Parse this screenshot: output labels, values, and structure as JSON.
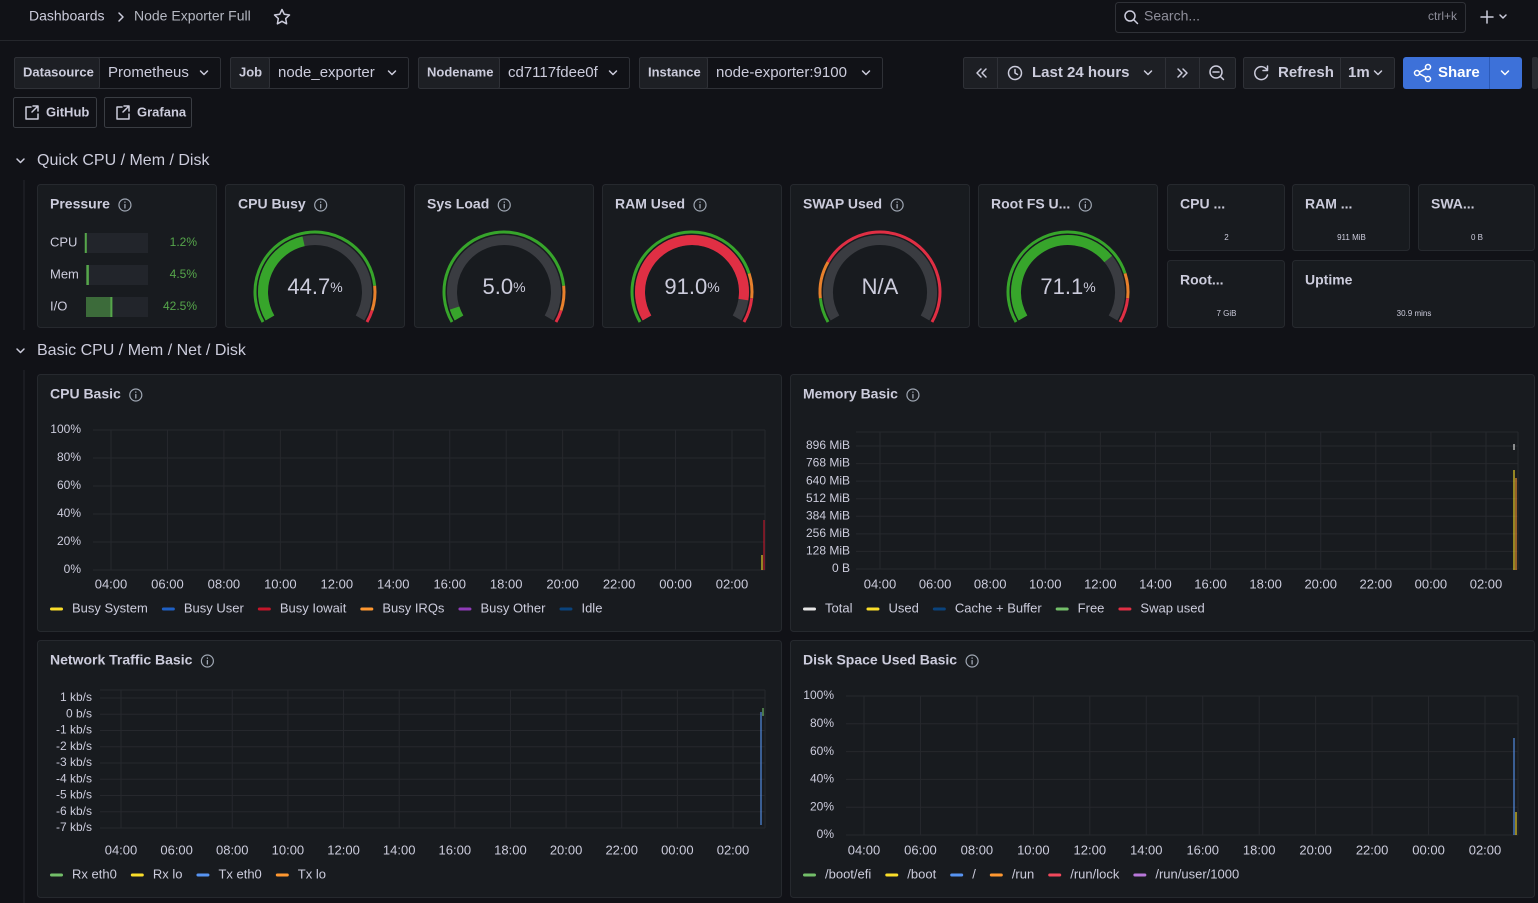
{
  "header": {
    "breadcrumb": "Dashboards",
    "title": "Node Exporter Full",
    "search_placeholder": "Search...",
    "search_shortcut": "ctrl+k"
  },
  "variables": [
    {
      "label": "Datasource",
      "value": "Prometheus"
    },
    {
      "label": "Job",
      "value": "node_exporter"
    },
    {
      "label": "Nodename",
      "value": "cd7117fdee0f"
    },
    {
      "label": "Instance",
      "value": "node-exporter:9100"
    }
  ],
  "time_controls": {
    "range": "Last 24 hours",
    "refresh": "Refresh",
    "interval": "1m",
    "share": "Share"
  },
  "links": [
    "GitHub",
    "Grafana"
  ],
  "rows": [
    "Quick CPU / Mem / Disk",
    "Basic CPU / Mem / Net / Disk"
  ],
  "pressure": {
    "title": "Pressure",
    "items": [
      {
        "label": "CPU",
        "value": 1.2,
        "value_label": "1.2%"
      },
      {
        "label": "Mem",
        "value": 4.5,
        "value_label": "4.5%"
      },
      {
        "label": "I/O",
        "value": 42.5,
        "value_label": "42.5%"
      }
    ]
  },
  "gauges": [
    {
      "title": "CPU Busy",
      "value": 44.7,
      "value_label": "44.7",
      "unit": "%",
      "range": [
        0,
        100
      ],
      "thresholds": [
        {
          "value": 0,
          "color": "#37a52b"
        },
        {
          "value": 85,
          "color": "#e8812c"
        },
        {
          "value": 95,
          "color": "#e02f44"
        }
      ]
    },
    {
      "title": "Sys Load",
      "value": 5,
      "value_label": "5.0",
      "unit": "%",
      "range": [
        0,
        100
      ],
      "thresholds": [
        {
          "value": 0,
          "color": "#37a52b"
        },
        {
          "value": 85,
          "color": "#e8812c"
        },
        {
          "value": 95,
          "color": "#e02f44"
        }
      ]
    },
    {
      "title": "RAM Used",
      "value": 91,
      "value_label": "91.0",
      "unit": "%",
      "range": [
        0,
        100
      ],
      "thresholds": [
        {
          "value": 0,
          "color": "#37a52b"
        },
        {
          "value": 80,
          "color": "#e8812c"
        },
        {
          "value": 90,
          "color": "#e02f44"
        }
      ]
    },
    {
      "title": "SWAP Used",
      "value": null,
      "value_label": "N/A",
      "range": [
        0,
        100
      ],
      "thresholds": [
        {
          "value": 0,
          "color": "#37a52b"
        },
        {
          "value": 10,
          "color": "#e8812c"
        },
        {
          "value": 25,
          "color": "#e02f44"
        }
      ]
    },
    {
      "title": "Root FS U...",
      "value": 71.1,
      "value_label": "71.1",
      "unit": "%",
      "range": [
        0,
        100
      ],
      "thresholds": [
        {
          "value": 0,
          "color": "#37a52b"
        },
        {
          "value": 80,
          "color": "#e8812c"
        },
        {
          "value": 90,
          "color": "#e02f44"
        }
      ]
    }
  ],
  "stats": [
    {
      "title": "CPU ...",
      "value": "2"
    },
    {
      "title": "RAM ...",
      "value": "911 MiB"
    },
    {
      "title": "SWA...",
      "value": "0 B"
    },
    {
      "title": "Root...",
      "value": "7 GiB"
    },
    {
      "title": "Uptime",
      "value": "30.9 mins"
    }
  ],
  "panels": [
    {
      "title": "CPU Basic",
      "yticks": [
        "0%",
        "20%",
        "40%",
        "60%",
        "80%",
        "100%"
      ],
      "xticks": [
        "04:00",
        "06:00",
        "08:00",
        "10:00",
        "12:00",
        "14:00",
        "16:00",
        "18:00",
        "20:00",
        "22:00",
        "00:00",
        "02:00"
      ],
      "legend": [
        {
          "name": "Busy System",
          "color": "#fade2a"
        },
        {
          "name": "Busy User",
          "color": "#1f60c4"
        },
        {
          "name": "Busy Iowait",
          "color": "#c4162a"
        },
        {
          "name": "Busy IRQs",
          "color": "#ff9830"
        },
        {
          "name": "Busy Other",
          "color": "#8f3bb8"
        },
        {
          "name": "Idle",
          "color": "#0a437c"
        }
      ]
    },
    {
      "title": "Memory Basic",
      "yticks": [
        "0 B",
        "128 MiB",
        "256 MiB",
        "384 MiB",
        "512 MiB",
        "640 MiB",
        "768 MiB",
        "896 MiB"
      ],
      "xticks": [
        "04:00",
        "06:00",
        "08:00",
        "10:00",
        "12:00",
        "14:00",
        "16:00",
        "18:00",
        "20:00",
        "22:00",
        "00:00",
        "02:00"
      ],
      "legend": [
        {
          "name": "Total",
          "color": "#e6e6e6"
        },
        {
          "name": "Used",
          "color": "#fade2a"
        },
        {
          "name": "Cache + Buffer",
          "color": "#0a437c"
        },
        {
          "name": "Free",
          "color": "#73bf69"
        },
        {
          "name": "Swap used",
          "color": "#e02f44"
        }
      ]
    },
    {
      "title": "Network Traffic Basic",
      "yticks": [
        "-7 kb/s",
        "-6 kb/s",
        "-5 kb/s",
        "-4 kb/s",
        "-3 kb/s",
        "-2 kb/s",
        "-1 kb/s",
        "0 b/s",
        "1 kb/s"
      ],
      "xticks": [
        "04:00",
        "06:00",
        "08:00",
        "10:00",
        "12:00",
        "14:00",
        "16:00",
        "18:00",
        "20:00",
        "22:00",
        "00:00",
        "02:00"
      ],
      "legend": [
        {
          "name": "Rx eth0",
          "color": "#73bf69"
        },
        {
          "name": "Rx lo",
          "color": "#fade2a"
        },
        {
          "name": "Tx eth0",
          "color": "#5794f2"
        },
        {
          "name": "Tx lo",
          "color": "#ff9830"
        }
      ]
    },
    {
      "title": "Disk Space Used Basic",
      "yticks": [
        "0%",
        "20%",
        "40%",
        "60%",
        "80%",
        "100%"
      ],
      "xticks": [
        "04:00",
        "06:00",
        "08:00",
        "10:00",
        "12:00",
        "14:00",
        "16:00",
        "18:00",
        "20:00",
        "22:00",
        "00:00",
        "02:00"
      ],
      "legend": [
        {
          "name": "/boot/efi",
          "color": "#73bf69"
        },
        {
          "name": "/boot",
          "color": "#fade2a"
        },
        {
          "name": "/",
          "color": "#5794f2"
        },
        {
          "name": "/run",
          "color": "#ff9830"
        },
        {
          "name": "/run/lock",
          "color": "#f2495c"
        },
        {
          "name": "/run/user/1000",
          "color": "#b877d9"
        }
      ]
    }
  ]
}
